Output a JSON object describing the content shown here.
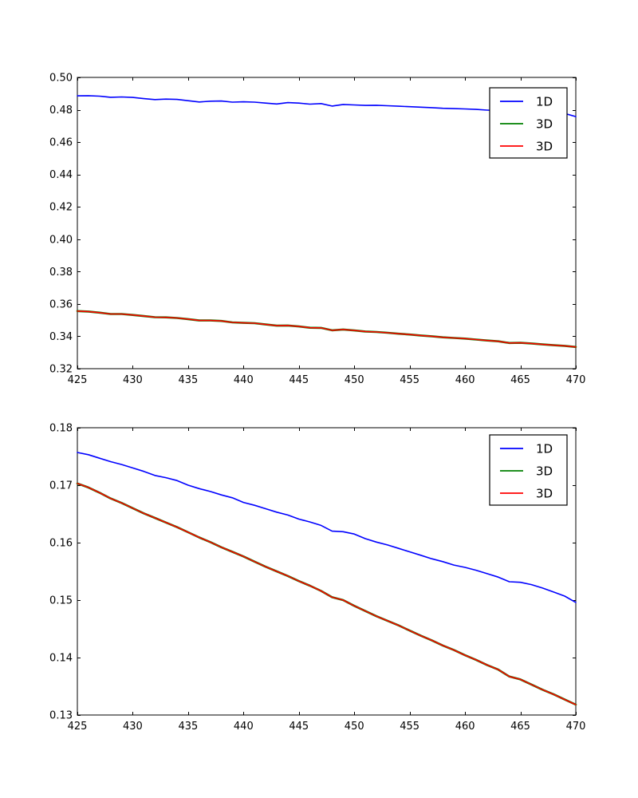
{
  "figure": {
    "background": "#ffffff",
    "spine_color": "#000000"
  },
  "chart_data": [
    {
      "type": "line",
      "title": "",
      "xlabel": "",
      "ylabel": "",
      "xlim": [
        425,
        470
      ],
      "ylim": [
        0.32,
        0.5
      ],
      "grid": false,
      "xticks": [
        425,
        430,
        435,
        440,
        445,
        450,
        455,
        460,
        465,
        470
      ],
      "xtick_labels": [
        "425",
        "430",
        "435",
        "440",
        "445",
        "450",
        "455",
        "460",
        "465",
        "470"
      ],
      "yticks": [
        0.32,
        0.34,
        0.36,
        0.38,
        0.4,
        0.42,
        0.44,
        0.46,
        0.48,
        0.5
      ],
      "ytick_labels": [
        "0.32",
        "0.34",
        "0.36",
        "0.38",
        "0.40",
        "0.42",
        "0.44",
        "0.46",
        "0.48",
        "0.50"
      ],
      "legend": {
        "position": "upper right",
        "labels": [
          "1D",
          "3D",
          "3D"
        ]
      },
      "x": [
        425,
        426,
        427,
        428,
        429,
        430,
        431,
        432,
        433,
        434,
        435,
        436,
        437,
        438,
        439,
        440,
        441,
        442,
        443,
        444,
        445,
        446,
        447,
        448,
        449,
        450,
        451,
        452,
        453,
        454,
        455,
        456,
        457,
        458,
        459,
        460,
        461,
        462,
        463,
        464,
        465,
        466,
        467,
        468,
        469,
        470
      ],
      "series": [
        {
          "name": "1D",
          "color": "#0000ff",
          "lw": 1.6,
          "values": [
            0.4886,
            0.4887,
            0.4884,
            0.4877,
            0.4879,
            0.4876,
            0.4869,
            0.4863,
            0.4866,
            0.4864,
            0.4856,
            0.4848,
            0.4853,
            0.4854,
            0.4847,
            0.4849,
            0.4847,
            0.4841,
            0.4836,
            0.4844,
            0.4841,
            0.4835,
            0.4838,
            0.4823,
            0.4833,
            0.483,
            0.4827,
            0.4828,
            0.4825,
            0.4822,
            0.4819,
            0.4816,
            0.4813,
            0.4809,
            0.4807,
            0.4805,
            0.4802,
            0.4798,
            0.4795,
            0.4787,
            0.4791,
            0.4789,
            0.4785,
            0.4781,
            0.4777,
            0.4758
          ]
        },
        {
          "name": "3D",
          "color": "#008000",
          "lw": 2.6,
          "values": [
            0.3556,
            0.3553,
            0.3546,
            0.3538,
            0.3538,
            0.3532,
            0.3525,
            0.3518,
            0.3517,
            0.3513,
            0.3506,
            0.3498,
            0.3498,
            0.3495,
            0.3486,
            0.3483,
            0.3481,
            0.3473,
            0.3466,
            0.3467,
            0.3461,
            0.3453,
            0.3452,
            0.3437,
            0.3442,
            0.3436,
            0.343,
            0.3427,
            0.3422,
            0.3416,
            0.3411,
            0.3405,
            0.34,
            0.3394,
            0.339,
            0.3386,
            0.338,
            0.3374,
            0.3369,
            0.3359,
            0.336,
            0.3356,
            0.335,
            0.3345,
            0.3341,
            0.3334
          ]
        },
        {
          "name": "3D",
          "color": "#ff0000",
          "lw": 1.6,
          "values": [
            0.3556,
            0.3553,
            0.3546,
            0.3538,
            0.3538,
            0.3532,
            0.3525,
            0.3518,
            0.3517,
            0.3513,
            0.3506,
            0.3498,
            0.3498,
            0.3495,
            0.3486,
            0.3483,
            0.3481,
            0.3473,
            0.3466,
            0.3467,
            0.3461,
            0.3453,
            0.3452,
            0.3437,
            0.3442,
            0.3436,
            0.343,
            0.3427,
            0.3422,
            0.3416,
            0.3411,
            0.3405,
            0.34,
            0.3394,
            0.339,
            0.3386,
            0.338,
            0.3374,
            0.3369,
            0.3359,
            0.336,
            0.3356,
            0.335,
            0.3345,
            0.3341,
            0.3334
          ]
        }
      ]
    },
    {
      "type": "line",
      "title": "",
      "xlabel": "",
      "ylabel": "",
      "xlim": [
        425,
        470
      ],
      "ylim": [
        0.13,
        0.18
      ],
      "grid": false,
      "xticks": [
        425,
        430,
        435,
        440,
        445,
        450,
        455,
        460,
        465,
        470
      ],
      "xtick_labels": [
        "425",
        "430",
        "435",
        "440",
        "445",
        "450",
        "455",
        "460",
        "465",
        "470"
      ],
      "yticks": [
        0.13,
        0.14,
        0.15,
        0.16,
        0.17,
        0.18
      ],
      "ytick_labels": [
        "0.13",
        "0.14",
        "0.15",
        "0.16",
        "0.17",
        "0.18"
      ],
      "legend": {
        "position": "upper right",
        "labels": [
          "1D",
          "3D",
          "3D"
        ]
      },
      "x": [
        425,
        426,
        427,
        428,
        429,
        430,
        431,
        432,
        433,
        434,
        435,
        436,
        437,
        438,
        439,
        440,
        441,
        442,
        443,
        444,
        445,
        446,
        447,
        448,
        449,
        450,
        451,
        452,
        453,
        454,
        455,
        456,
        457,
        458,
        459,
        460,
        461,
        462,
        463,
        464,
        465,
        466,
        467,
        468,
        469,
        470
      ],
      "series": [
        {
          "name": "1D",
          "color": "#0000ff",
          "lw": 1.6,
          "values": [
            0.1757,
            0.1753,
            0.1747,
            0.1741,
            0.1736,
            0.173,
            0.1724,
            0.1717,
            0.1713,
            0.1708,
            0.17,
            0.1694,
            0.1689,
            0.1683,
            0.1678,
            0.167,
            0.1665,
            0.1659,
            0.1653,
            0.1648,
            0.1641,
            0.1636,
            0.163,
            0.162,
            0.1619,
            0.1615,
            0.1607,
            0.1601,
            0.1596,
            0.159,
            0.1584,
            0.1578,
            0.1572,
            0.1567,
            0.1561,
            0.1557,
            0.1552,
            0.1546,
            0.154,
            0.1532,
            0.1531,
            0.1527,
            0.1521,
            0.1514,
            0.1507,
            0.1496
          ]
        },
        {
          "name": "3D",
          "color": "#008000",
          "lw": 2.6,
          "values": [
            0.1703,
            0.1696,
            0.1687,
            0.1677,
            0.1669,
            0.166,
            0.1651,
            0.1643,
            0.1635,
            0.1627,
            0.1618,
            0.1609,
            0.1601,
            0.1592,
            0.1584,
            0.1576,
            0.1567,
            0.1558,
            0.155,
            0.1542,
            0.1533,
            0.1525,
            0.1516,
            0.1505,
            0.15,
            0.149,
            0.1481,
            0.1472,
            0.1464,
            0.1456,
            0.1447,
            0.1438,
            0.143,
            0.1421,
            0.1413,
            0.1404,
            0.1396,
            0.1387,
            0.1379,
            0.1367,
            0.1362,
            0.1353,
            0.1344,
            0.1336,
            0.1327,
            0.1318
          ]
        },
        {
          "name": "3D",
          "color": "#ff0000",
          "lw": 1.6,
          "values": [
            0.1703,
            0.1696,
            0.1687,
            0.1677,
            0.1669,
            0.166,
            0.1651,
            0.1643,
            0.1635,
            0.1627,
            0.1618,
            0.1609,
            0.1601,
            0.1592,
            0.1584,
            0.1576,
            0.1567,
            0.1558,
            0.155,
            0.1542,
            0.1533,
            0.1525,
            0.1516,
            0.1505,
            0.15,
            0.149,
            0.1481,
            0.1472,
            0.1464,
            0.1456,
            0.1447,
            0.1438,
            0.143,
            0.1421,
            0.1413,
            0.1404,
            0.1396,
            0.1387,
            0.1379,
            0.1367,
            0.1362,
            0.1353,
            0.1344,
            0.1336,
            0.1327,
            0.1318
          ]
        }
      ]
    }
  ]
}
